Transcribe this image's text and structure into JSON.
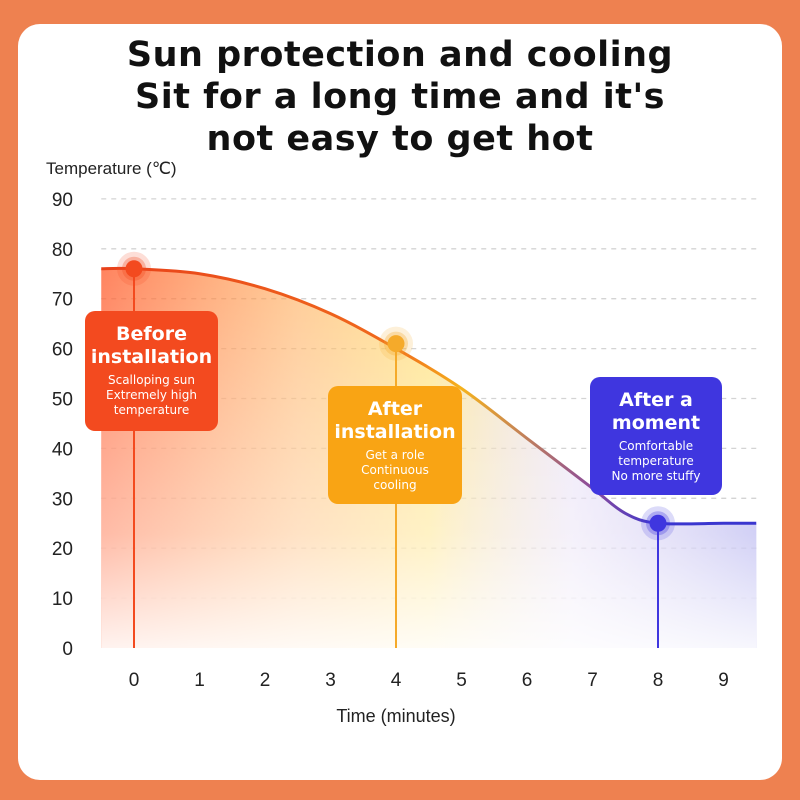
{
  "title_lines": [
    "Sun protection and cooling",
    "Sit for a long time and it's",
    "not easy to get hot"
  ],
  "callouts": [
    {
      "heading": [
        "Before",
        "installation"
      ],
      "desc": [
        "Scalloping sun",
        "Extremely high",
        "temperature"
      ],
      "color": "#f34a1f"
    },
    {
      "heading": [
        "After",
        "installation"
      ],
      "desc": [
        "Get a role",
        "Continuous",
        "cooling"
      ],
      "color": "#f9a414"
    },
    {
      "heading": [
        "After a",
        "moment"
      ],
      "desc": [
        "Comfortable",
        "temperature",
        "No more stuffy"
      ],
      "color": "#3f36df"
    }
  ],
  "chart_data": {
    "type": "line",
    "ylabel": "Temperature (℃)",
    "xlabel": "Time (minutes)",
    "x_ticks": [
      0,
      1,
      2,
      3,
      4,
      5,
      6,
      7,
      8,
      9
    ],
    "y_ticks": [
      0,
      10,
      20,
      30,
      40,
      50,
      60,
      70,
      80,
      90
    ],
    "xlim": [
      -0.5,
      9.5
    ],
    "ylim": [
      0,
      90
    ],
    "grid": true,
    "series": [
      {
        "x": [
          -0.5,
          0,
          1,
          2,
          3,
          4,
          5,
          6,
          7,
          7.5,
          8,
          9,
          9.5
        ],
        "y": [
          76,
          76,
          75,
          72,
          67,
          60,
          52,
          42,
          32,
          27,
          25,
          25,
          25
        ]
      }
    ],
    "markers": [
      {
        "x": 0,
        "y": 76,
        "color": "#f34a1f"
      },
      {
        "x": 4,
        "y": 61,
        "color": "#f5aa2a"
      },
      {
        "x": 8,
        "y": 25,
        "color": "#3f36df"
      }
    ],
    "colors": {
      "hot": "#e8401a",
      "warm": "#f5b21c",
      "cool": "#3a36cf",
      "grid": "#d4d4d4"
    }
  }
}
